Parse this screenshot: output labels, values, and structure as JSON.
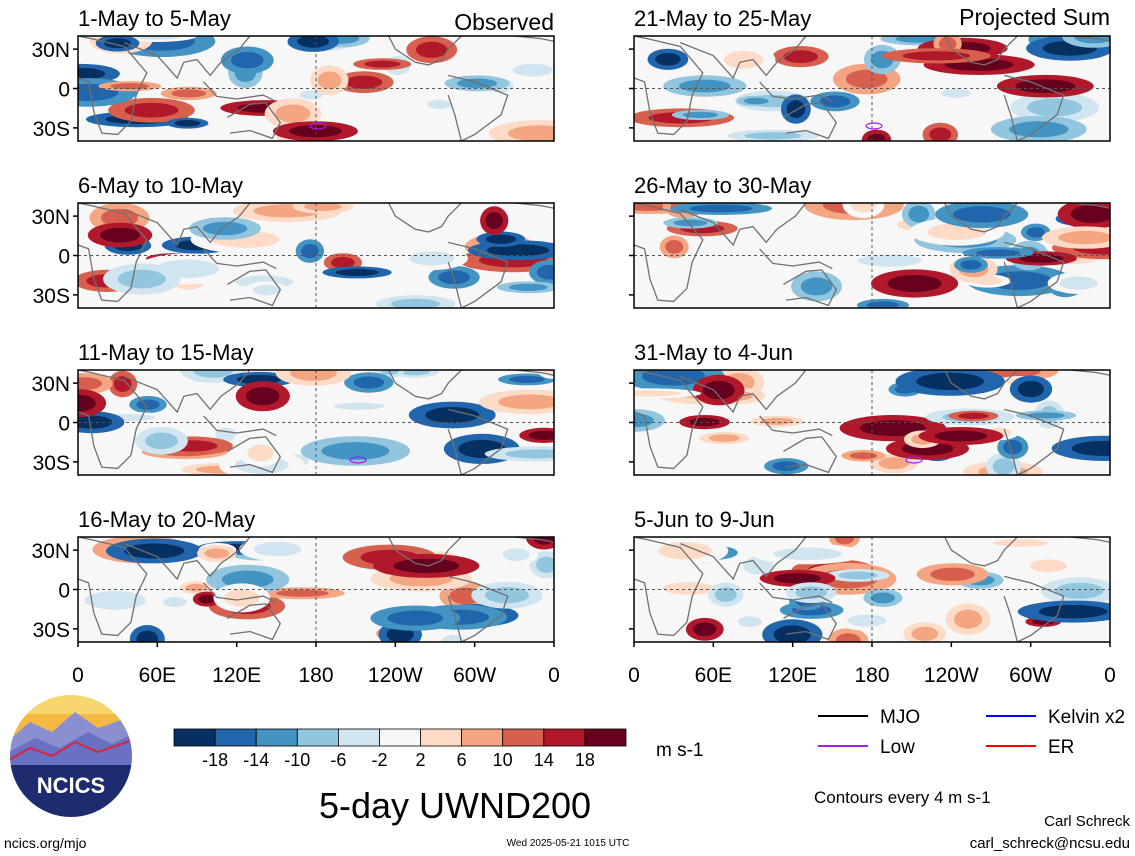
{
  "headers": {
    "left": "Observed",
    "right": "Projected Sum"
  },
  "panels_left": [
    {
      "title": "1-May to 5-May"
    },
    {
      "title": "6-May to 10-May"
    },
    {
      "title": "11-May to 15-May"
    },
    {
      "title": "16-May to 20-May"
    }
  ],
  "panels_right": [
    {
      "title": "21-May to 25-May"
    },
    {
      "title": "26-May to 30-May"
    },
    {
      "title": "31-May to 4-Jun"
    },
    {
      "title": "5-Jun to 9-Jun"
    }
  ],
  "lat_labels": [
    "30N",
    "0",
    "30S"
  ],
  "lon_labels": [
    "0",
    "60E",
    "120E",
    "180",
    "120W",
    "60W",
    "0"
  ],
  "colorbar": {
    "labels": [
      "-18",
      "-14",
      "-10",
      "-6",
      "-2",
      "2",
      "6",
      "10",
      "14",
      "18"
    ],
    "colors": [
      "#053061",
      "#2166ac",
      "#4393c3",
      "#92c5de",
      "#d1e5f0",
      "#f7f7f7",
      "#fddbc7",
      "#f4a582",
      "#d6604d",
      "#b2182b",
      "#67001f"
    ],
    "units": "m s-1"
  },
  "legend": [
    {
      "label": "MJO",
      "color": "#000000"
    },
    {
      "label": "Kelvin x2",
      "color": "#0000ff"
    },
    {
      "label": "Low",
      "color": "#a020f0"
    },
    {
      "label": "ER",
      "color": "#ff0000"
    }
  ],
  "contours_note": "Contours every 4 m s-1",
  "main_title": "5-day UWND200",
  "logo_text": "NCICS",
  "url_left": "ncics.org/mjo",
  "timestamp": "Wed 2025-05-21 1015 UTC",
  "author": "Carl Schreck",
  "email": "carl_schreck@ncsu.edu"
}
